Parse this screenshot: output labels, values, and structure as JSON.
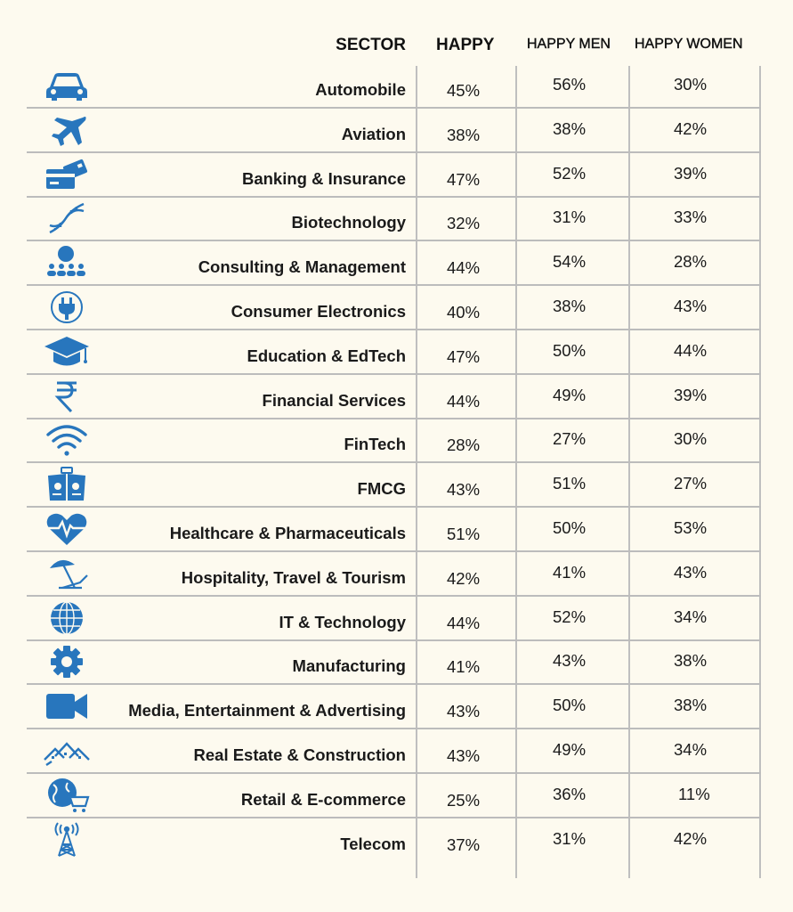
{
  "chart_data": {
    "type": "table",
    "columns": [
      "SECTOR",
      "HAPPY",
      "HAPPY MEN",
      "HAPPY WOMEN"
    ],
    "colors": {
      "icon": "#2876bd",
      "background": "#fdfaef",
      "gridline": "#bcbcbc"
    },
    "rows": [
      {
        "sector": "Automobile",
        "icon": "car-icon",
        "happy": "45%",
        "men": "56%",
        "women": "30%"
      },
      {
        "sector": "Aviation",
        "icon": "airplane-icon",
        "happy": "38%",
        "men": "38%",
        "women": "42%"
      },
      {
        "sector": "Banking & Insurance",
        "icon": "credit-card-icon",
        "happy": "47%",
        "men": "52%",
        "women": "39%"
      },
      {
        "sector": "Biotechnology",
        "icon": "dna-icon",
        "happy": "32%",
        "men": "31%",
        "women": "33%"
      },
      {
        "sector": "Consulting & Management",
        "icon": "people-icon",
        "happy": "44%",
        "men": "54%",
        "women": "28%"
      },
      {
        "sector": "Consumer Electronics",
        "icon": "plug-icon",
        "happy": "40%",
        "men": "38%",
        "women": "43%"
      },
      {
        "sector": "Education & EdTech",
        "icon": "graduation-cap-icon",
        "happy": "47%",
        "men": "50%",
        "women": "44%"
      },
      {
        "sector": "Financial Services",
        "icon": "rupee-icon",
        "happy": "44%",
        "men": "49%",
        "women": "39%"
      },
      {
        "sector": "FinTech",
        "icon": "wifi-icon",
        "happy": "28%",
        "men": "27%",
        "women": "30%"
      },
      {
        "sector": "FMCG",
        "icon": "packages-icon",
        "happy": "43%",
        "men": "51%",
        "women": "27%"
      },
      {
        "sector": "Healthcare & Pharmaceuticals",
        "icon": "heart-pulse-icon",
        "happy": "51%",
        "men": "50%",
        "women": "53%"
      },
      {
        "sector": "Hospitality, Travel & Tourism",
        "icon": "beach-umbrella-icon",
        "happy": "42%",
        "men": "41%",
        "women": "43%"
      },
      {
        "sector": "IT & Technology",
        "icon": "globe-icon",
        "happy": "44%",
        "men": "52%",
        "women": "34%"
      },
      {
        "sector": "Manufacturing",
        "icon": "gear-icon",
        "happy": "41%",
        "men": "43%",
        "women": "38%"
      },
      {
        "sector": "Media, Entertainment & Advertising",
        "icon": "video-camera-icon",
        "happy": "43%",
        "men": "50%",
        "women": "38%"
      },
      {
        "sector": "Real Estate & Construction",
        "icon": "houses-icon",
        "happy": "43%",
        "men": "49%",
        "women": "34%"
      },
      {
        "sector": "Retail & E-commerce",
        "icon": "globe-cart-icon",
        "happy": "25%",
        "men": "36%",
        "women": "11%"
      },
      {
        "sector": "Telecom",
        "icon": "antenna-tower-icon",
        "happy": "37%",
        "men": "31%",
        "women": "42%"
      }
    ]
  }
}
